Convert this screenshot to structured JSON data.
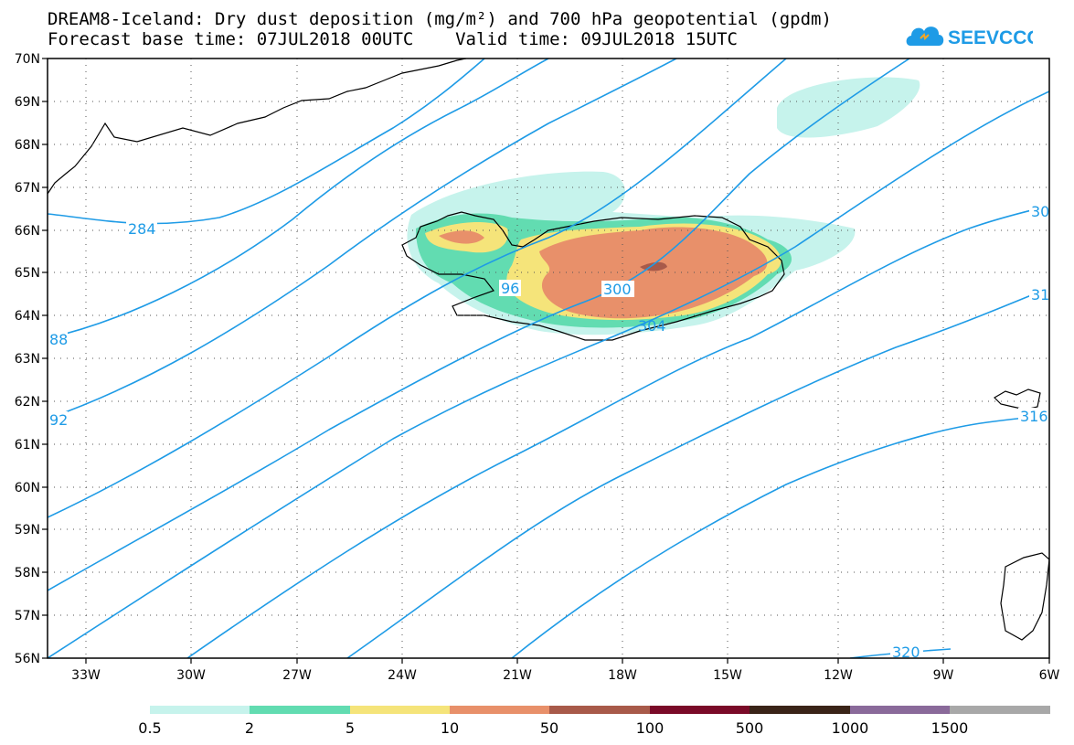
{
  "header": {
    "title_line1": "DREAM8-Iceland: Dry dust deposition (mg/m²) and 700 hPa geopotential (gpdm)",
    "title_line2": "Forecast base time: 07JUL2018 00UTC    Valid time: 09JUL2018 15UTC",
    "logo_text": "SEEVCCC"
  },
  "map": {
    "lat_labels": [
      "70N",
      "69N",
      "68N",
      "67N",
      "66N",
      "65N",
      "64N",
      "63N",
      "62N",
      "61N",
      "60N",
      "59N",
      "58N",
      "57N",
      "56N"
    ],
    "lon_labels": [
      "33W",
      "30W",
      "27W",
      "24W",
      "21W",
      "18W",
      "15W",
      "12W",
      "9W",
      "6W"
    ],
    "contour_color": "#1e9be6",
    "contour_labels": [
      {
        "text": "284"
      },
      {
        "text": "88"
      },
      {
        "text": "92"
      },
      {
        "text": "96"
      },
      {
        "text": "300"
      },
      {
        "text": "304"
      },
      {
        "text": "30"
      },
      {
        "text": "31"
      },
      {
        "text": "316"
      },
      {
        "text": "320"
      }
    ]
  },
  "legend": {
    "colors": [
      "#c6f3ec",
      "#62dcb1",
      "#f5e47a",
      "#e8906a",
      "#a85a4a",
      "#7a0a28",
      "#3a2418",
      "#8a6a9a",
      "#a8a8a8"
    ],
    "labels": [
      "0.5",
      "2",
      "5",
      "10",
      "50",
      "100",
      "500",
      "1000",
      "1500"
    ]
  }
}
